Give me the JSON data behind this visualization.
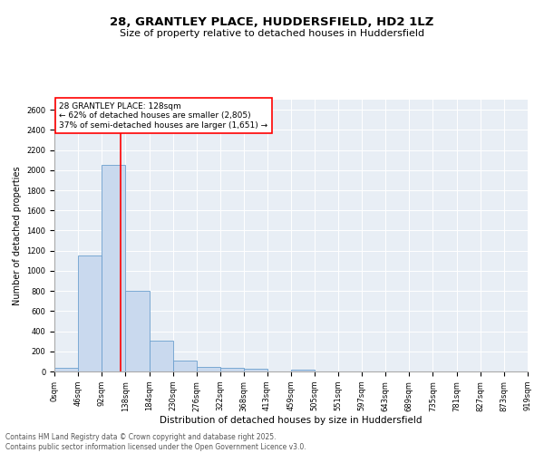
{
  "title": "28, GRANTLEY PLACE, HUDDERSFIELD, HD2 1LZ",
  "subtitle": "Size of property relative to detached houses in Huddersfield",
  "xlabel": "Distribution of detached houses by size in Huddersfield",
  "ylabel": "Number of detached properties",
  "bar_values": [
    35,
    1150,
    2050,
    800,
    310,
    105,
    45,
    40,
    25,
    0,
    20,
    0,
    0,
    0,
    0,
    0,
    0,
    0,
    0,
    0
  ],
  "bin_edges": [
    0,
    46,
    92,
    138,
    184,
    230,
    276,
    322,
    368,
    413,
    459,
    505,
    551,
    597,
    643,
    689,
    735,
    781,
    827,
    873,
    919
  ],
  "tick_labels": [
    "0sqm",
    "46sqm",
    "92sqm",
    "138sqm",
    "184sqm",
    "230sqm",
    "276sqm",
    "322sqm",
    "368sqm",
    "413sqm",
    "459sqm",
    "505sqm",
    "551sqm",
    "597sqm",
    "643sqm",
    "689sqm",
    "735sqm",
    "781sqm",
    "827sqm",
    "873sqm",
    "919sqm"
  ],
  "bar_color": "#c9d9ee",
  "bar_edge_color": "#6b9fce",
  "vline_x": 128,
  "vline_color": "red",
  "annotation_text": "28 GRANTLEY PLACE: 128sqm\n← 62% of detached houses are smaller (2,805)\n37% of semi-detached houses are larger (1,651) →",
  "annotation_box_color": "white",
  "annotation_box_edge_color": "red",
  "ylim": [
    0,
    2700
  ],
  "yticks": [
    0,
    200,
    400,
    600,
    800,
    1000,
    1200,
    1400,
    1600,
    1800,
    2000,
    2200,
    2400,
    2600
  ],
  "bg_color": "#e8eef5",
  "footer_line1": "Contains HM Land Registry data © Crown copyright and database right 2025.",
  "footer_line2": "Contains public sector information licensed under the Open Government Licence v3.0.",
  "title_fontsize": 9.5,
  "subtitle_fontsize": 8,
  "tick_fontsize": 6,
  "ylabel_fontsize": 7,
  "xlabel_fontsize": 7.5,
  "annotation_fontsize": 6.5,
  "footer_fontsize": 5.5
}
